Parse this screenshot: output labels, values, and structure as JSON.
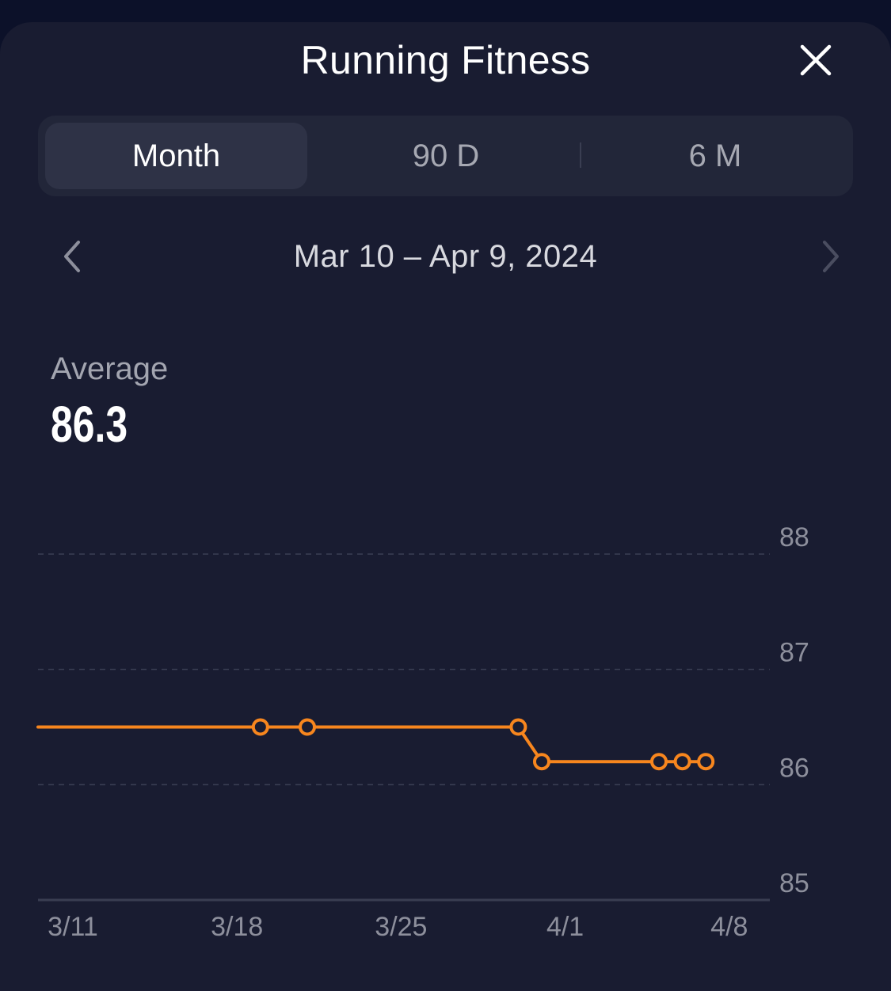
{
  "header": {
    "title": "Running Fitness",
    "close_icon": "close-icon"
  },
  "tabs": [
    {
      "label": "Month",
      "active": true
    },
    {
      "label": "90 D",
      "active": false
    },
    {
      "label": "6 M",
      "active": false
    }
  ],
  "date_nav": {
    "range": "Mar 10 – Apr 9, 2024",
    "prev_icon": "chevron-left-icon",
    "next_icon": "chevron-right-icon"
  },
  "summary": {
    "label": "Average",
    "value": "86.3"
  },
  "colors": {
    "background": "#191c31",
    "accent": "#f7861e",
    "grid": "#3b3f54"
  },
  "chart_data": {
    "type": "line",
    "x_tick_labels": [
      "3/11",
      "3/18",
      "3/25",
      "4/1",
      "4/8"
    ],
    "y_tick_labels": [
      "88",
      "87",
      "86",
      "85"
    ],
    "ylim": [
      85,
      88
    ],
    "grid": true,
    "series": [
      {
        "points": [
          {
            "x": "3/10",
            "y": 86.5,
            "marker": false
          },
          {
            "x": "3/19",
            "y": 86.5,
            "marker": true
          },
          {
            "x": "3/21",
            "y": 86.5,
            "marker": true
          },
          {
            "x": "3/30",
            "y": 86.5,
            "marker": true
          },
          {
            "x": "3/31",
            "y": 86.2,
            "marker": true
          },
          {
            "x": "4/5",
            "y": 86.2,
            "marker": true
          },
          {
            "x": "4/6",
            "y": 86.2,
            "marker": true
          },
          {
            "x": "4/7",
            "y": 86.2,
            "marker": true
          }
        ]
      }
    ]
  }
}
